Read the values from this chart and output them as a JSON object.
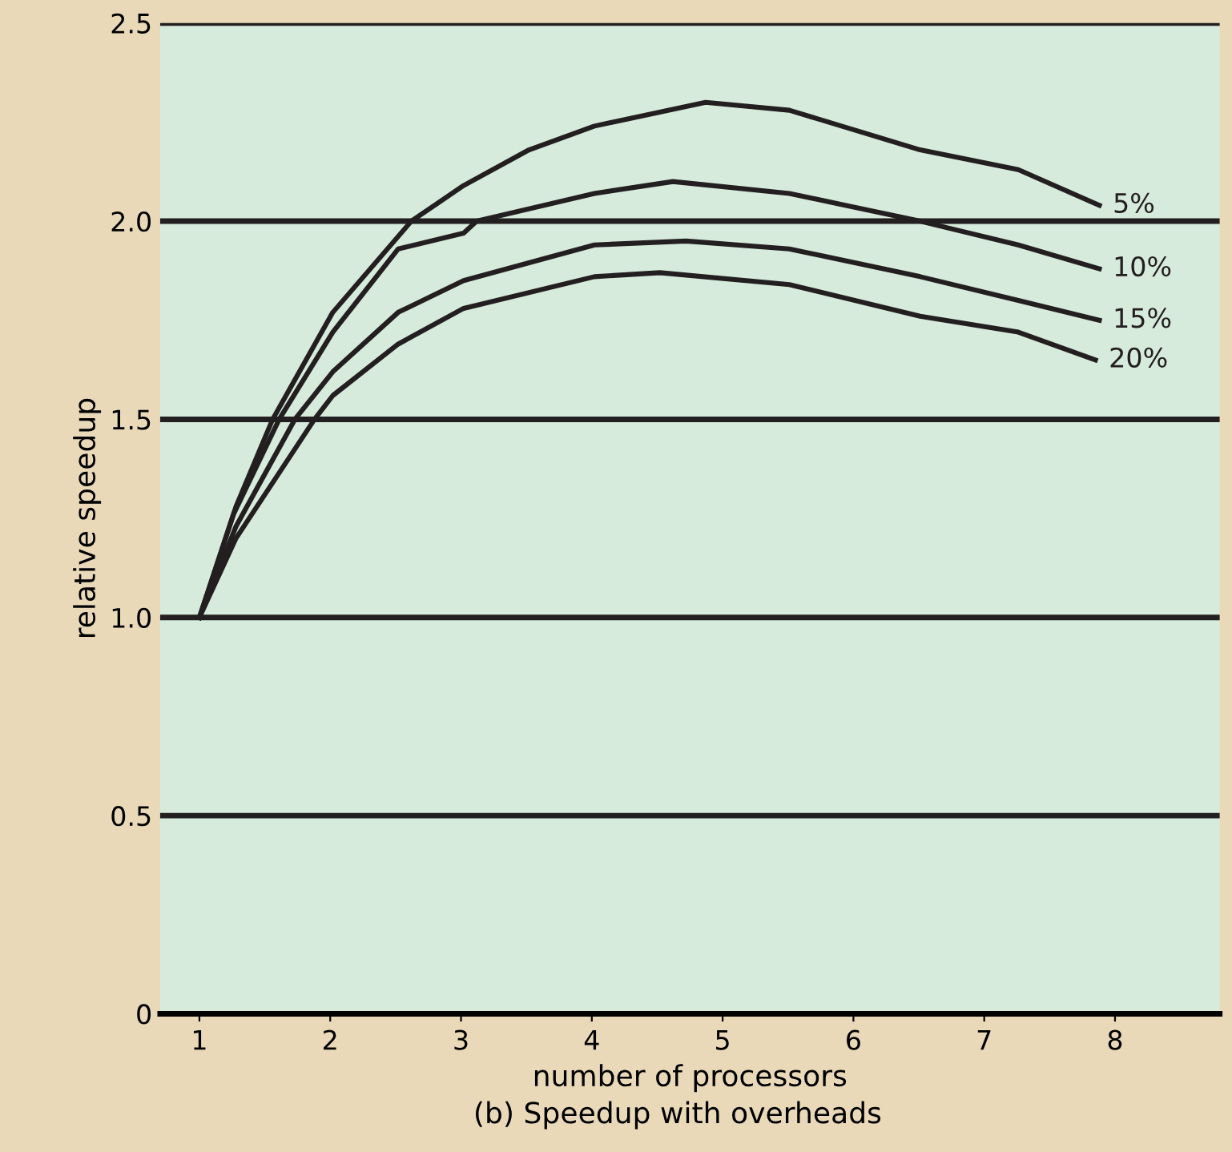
{
  "chart_data": {
    "type": "line",
    "xlabel": "number of processors",
    "ylabel": "relative speedup",
    "annotations": [
      "(b) Speedup with overheads"
    ],
    "xlim": [
      0.7,
      8.8
    ],
    "xticks": [
      1,
      2,
      3,
      4,
      5,
      6,
      7,
      8
    ],
    "ylim": [
      0,
      2.5
    ],
    "yticks": [
      0,
      0.5,
      {
        "value": 1,
        "label": "1.0"
      },
      1.5,
      {
        "value": 2,
        "label": "2.0"
      },
      2.5
    ],
    "grid": "y",
    "legend": false,
    "series": [
      {
        "name": "5%",
        "color": "#231f20",
        "x": [
          1,
          1.28,
          1.56,
          2.02,
          2.62,
          3.02,
          3.52,
          4.02,
          4.87,
          5.51,
          6.51,
          7.26,
          7.88
        ],
        "values": [
          1,
          1.28,
          1.5,
          1.77,
          2.0,
          2.09,
          2.18,
          2.24,
          2.3,
          2.28,
          2.18,
          2.13,
          2.04
        ]
      },
      {
        "name": "10%",
        "color": "#231f20",
        "x": [
          1,
          1.26,
          1.61,
          2.02,
          2.52,
          3.02,
          3.12,
          4.02,
          4.62,
          5.51,
          6.51,
          7.26,
          7.88
        ],
        "values": [
          1,
          1.26,
          1.5,
          1.72,
          1.93,
          1.97,
          2.0,
          2.07,
          2.1,
          2.07,
          2.0,
          1.94,
          1.88
        ]
      },
      {
        "name": "15%",
        "color": "#231f20",
        "x": [
          1,
          1.28,
          1.73,
          2.02,
          2.52,
          3.02,
          4.02,
          4.72,
          5.51,
          6.51,
          7.26,
          7.88
        ],
        "values": [
          1,
          1.23,
          1.5,
          1.62,
          1.77,
          1.85,
          1.94,
          1.95,
          1.93,
          1.86,
          1.8,
          1.75
        ]
      },
      {
        "name": "20%",
        "color": "#231f20",
        "x": [
          1,
          1.28,
          1.88,
          2.02,
          2.52,
          3.02,
          4.02,
          4.52,
          5.51,
          6.51,
          7.26,
          7.85
        ],
        "values": [
          1,
          1.2,
          1.5,
          1.56,
          1.69,
          1.78,
          1.86,
          1.87,
          1.84,
          1.76,
          1.72,
          1.65
        ]
      }
    ]
  }
}
